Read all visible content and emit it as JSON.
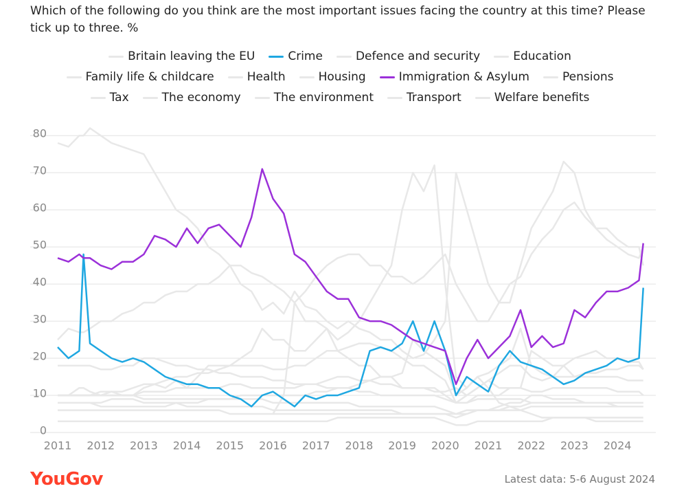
{
  "chart_data": {
    "type": "line",
    "title": "Which of the following do you think are the most important issues facing the country at this time? Please tick up to three. %",
    "logo": "YouGov",
    "note": "Latest data: 5-6 August 2024",
    "xlim": [
      2011,
      2024.7
    ],
    "xticks": [
      2011,
      2012,
      2013,
      2014,
      2015,
      2016,
      2017,
      2018,
      2019,
      2020,
      2021,
      2022,
      2023,
      2024
    ],
    "ylim": [
      0,
      83
    ],
    "yticks": [
      0,
      10,
      20,
      30,
      40,
      50,
      60,
      70,
      80
    ],
    "grid": true,
    "x": [
      2011,
      2011.25,
      2011.5,
      2011.6,
      2011.75,
      2012,
      2012.25,
      2012.5,
      2012.75,
      2013,
      2013.25,
      2013.5,
      2013.75,
      2014,
      2014.25,
      2014.5,
      2014.75,
      2015,
      2015.25,
      2015.5,
      2015.75,
      2016,
      2016.25,
      2016.5,
      2016.75,
      2017,
      2017.25,
      2017.5,
      2017.75,
      2018,
      2018.25,
      2018.5,
      2018.75,
      2019,
      2019.25,
      2019.5,
      2019.75,
      2020,
      2020.25,
      2020.5,
      2020.75,
      2021,
      2021.25,
      2021.5,
      2021.75,
      2022,
      2022.25,
      2022.5,
      2022.75,
      2023,
      2023.25,
      2023.5,
      2023.75,
      2024,
      2024.25,
      2024.5,
      2024.6
    ],
    "series": [
      {
        "name": "Britain leaving the EU",
        "color": "#e8e8e8",
        "values": [
          null,
          null,
          null,
          null,
          null,
          null,
          null,
          null,
          null,
          null,
          null,
          null,
          null,
          null,
          null,
          null,
          null,
          null,
          null,
          null,
          null,
          5,
          10,
          35,
          30,
          30,
          28,
          25,
          27,
          30,
          35,
          40,
          45,
          60,
          70,
          65,
          72,
          40,
          15,
          12,
          15,
          12,
          8,
          7,
          6,
          5,
          4,
          4,
          4,
          4,
          4,
          3,
          3,
          3,
          3,
          3,
          3
        ]
      },
      {
        "name": "Crime",
        "color": "#1ea7e1",
        "values": [
          23,
          20,
          22,
          48,
          24,
          22,
          20,
          19,
          20,
          19,
          17,
          15,
          14,
          13,
          13,
          12,
          12,
          10,
          9,
          7,
          10,
          11,
          9,
          7,
          10,
          9,
          10,
          10,
          11,
          12,
          22,
          23,
          22,
          24,
          30,
          22,
          30,
          22,
          10,
          15,
          13,
          11,
          18,
          22,
          19,
          18,
          17,
          15,
          13,
          14,
          16,
          17,
          18,
          20,
          19,
          20,
          39
        ]
      },
      {
        "name": "Defence and security",
        "color": "#e8e8e8",
        "values": [
          10,
          10,
          12,
          12,
          11,
          10,
          10,
          10,
          10,
          12,
          13,
          12,
          14,
          12,
          15,
          18,
          18,
          18,
          20,
          22,
          28,
          25,
          25,
          22,
          22,
          25,
          28,
          22,
          20,
          18,
          18,
          15,
          15,
          12,
          12,
          12,
          12,
          10,
          8,
          8,
          10,
          10,
          10,
          12,
          12,
          22,
          20,
          18,
          18,
          15,
          15,
          15,
          15,
          15,
          14,
          14,
          14
        ]
      },
      {
        "name": "Education",
        "color": "#e8e8e8",
        "values": [
          10,
          10,
          10,
          10,
          10,
          11,
          11,
          10,
          10,
          11,
          11,
          11,
          12,
          12,
          12,
          12,
          12,
          13,
          13,
          12,
          12,
          12,
          12,
          12,
          13,
          13,
          14,
          15,
          15,
          14,
          14,
          13,
          13,
          12,
          12,
          12,
          11,
          11,
          12,
          10,
          12,
          14,
          12,
          12,
          12,
          11,
          11,
          12,
          12,
          12,
          12,
          12,
          12,
          11,
          11,
          11,
          10
        ]
      },
      {
        "name": "Family life & childcare",
        "color": "#e8e8e8",
        "values": [
          6,
          6,
          6,
          6,
          6,
          6,
          6,
          6,
          6,
          6,
          6,
          6,
          6,
          6,
          6,
          6,
          6,
          5,
          5,
          5,
          5,
          5,
          5,
          5,
          5,
          5,
          5,
          5,
          5,
          5,
          5,
          5,
          5,
          5,
          5,
          5,
          5,
          5,
          5,
          6,
          6,
          6,
          6,
          6,
          6,
          7,
          7,
          7,
          7,
          7,
          7,
          7,
          7,
          7,
          7,
          7,
          7
        ]
      },
      {
        "name": "Health",
        "color": "#e8e8e8",
        "values": [
          25,
          28,
          27,
          27,
          28,
          30,
          30,
          32,
          33,
          35,
          35,
          37,
          38,
          38,
          40,
          40,
          42,
          45,
          45,
          43,
          42,
          40,
          38,
          35,
          38,
          42,
          45,
          47,
          48,
          48,
          45,
          45,
          42,
          42,
          40,
          42,
          45,
          48,
          40,
          35,
          30,
          30,
          35,
          40,
          42,
          48,
          52,
          55,
          60,
          62,
          58,
          55,
          55,
          52,
          50,
          50,
          45
        ]
      },
      {
        "name": "Housing",
        "color": "#e8e8e8",
        "values": [
          10,
          10,
          10,
          10,
          10,
          10,
          11,
          11,
          12,
          13,
          13,
          14,
          15,
          15,
          16,
          16,
          17,
          18,
          18,
          18,
          18,
          17,
          17,
          18,
          18,
          20,
          22,
          22,
          23,
          24,
          24,
          23,
          22,
          20,
          18,
          18,
          16,
          14,
          8,
          10,
          12,
          14,
          16,
          18,
          18,
          15,
          14,
          15,
          18,
          20,
          21,
          22,
          20,
          20,
          19,
          19,
          17
        ]
      },
      {
        "name": "Immigration & Asylum",
        "color": "#9b30d9",
        "values": [
          47,
          46,
          48,
          47,
          47,
          45,
          44,
          46,
          46,
          48,
          53,
          52,
          50,
          55,
          51,
          55,
          56,
          53,
          50,
          58,
          71,
          63,
          59,
          48,
          46,
          42,
          38,
          36,
          36,
          31,
          30,
          30,
          29,
          27,
          25,
          24,
          23,
          22,
          13,
          20,
          25,
          20,
          23,
          26,
          33,
          23,
          26,
          23,
          24,
          33,
          31,
          35,
          38,
          38,
          39,
          41,
          51
        ]
      },
      {
        "name": "Pensions",
        "color": "#e8e8e8",
        "values": [
          10,
          10,
          10,
          10,
          10,
          10,
          10,
          10,
          10,
          9,
          9,
          9,
          9,
          9,
          9,
          9,
          9,
          9,
          9,
          9,
          9,
          8,
          8,
          8,
          8,
          8,
          8,
          8,
          8,
          7,
          7,
          7,
          7,
          7,
          7,
          7,
          7,
          6,
          5,
          5,
          6,
          6,
          6,
          7,
          7,
          8,
          8,
          8,
          8,
          8,
          8,
          8,
          8,
          7,
          7,
          7,
          7
        ]
      },
      {
        "name": "Tax",
        "color": "#e8e8e8",
        "values": [
          8,
          8,
          8,
          8,
          8,
          8,
          9,
          9,
          9,
          8,
          8,
          8,
          8,
          7,
          7,
          7,
          7,
          7,
          7,
          7,
          7,
          6,
          6,
          6,
          6,
          6,
          6,
          6,
          6,
          6,
          6,
          6,
          6,
          5,
          5,
          5,
          5,
          5,
          4,
          5,
          6,
          6,
          7,
          8,
          8,
          10,
          10,
          9,
          9,
          9,
          8,
          8,
          8,
          8,
          8,
          8,
          8
        ]
      },
      {
        "name": "The economy",
        "color": "#e8e8e8",
        "values": [
          78,
          77,
          80,
          80,
          82,
          80,
          78,
          77,
          76,
          75,
          70,
          65,
          60,
          58,
          55,
          50,
          48,
          45,
          40,
          38,
          33,
          35,
          32,
          38,
          34,
          33,
          30,
          28,
          30,
          28,
          27,
          25,
          25,
          22,
          20,
          21,
          25,
          30,
          70,
          60,
          50,
          40,
          35,
          35,
          45,
          55,
          60,
          65,
          73,
          70,
          60,
          55,
          52,
          50,
          48,
          47,
          50
        ]
      },
      {
        "name": "The environment",
        "color": "#e8e8e8",
        "values": [
          8,
          8,
          8,
          8,
          8,
          7,
          7,
          7,
          7,
          7,
          7,
          7,
          8,
          8,
          8,
          9,
          9,
          9,
          10,
          10,
          10,
          10,
          10,
          10,
          10,
          11,
          11,
          12,
          12,
          13,
          14,
          15,
          15,
          16,
          25,
          22,
          20,
          18,
          10,
          12,
          15,
          16,
          18,
          20,
          28,
          18,
          16,
          15,
          15,
          15,
          16,
          16,
          17,
          17,
          18,
          18,
          17
        ]
      },
      {
        "name": "Transport",
        "color": "#e8e8e8",
        "values": [
          3,
          3,
          3,
          3,
          3,
          3,
          3,
          3,
          3,
          3,
          3,
          3,
          3,
          3,
          3,
          3,
          3,
          3,
          3,
          3,
          3,
          3,
          3,
          3,
          3,
          3,
          3,
          4,
          4,
          4,
          4,
          4,
          4,
          4,
          4,
          4,
          4,
          3,
          2,
          2,
          3,
          3,
          3,
          3,
          3,
          3,
          3,
          4,
          4,
          4,
          4,
          4,
          4,
          4,
          4,
          4,
          4
        ]
      },
      {
        "name": "Welfare benefits",
        "color": "#e8e8e8",
        "values": [
          18,
          18,
          18,
          18,
          18,
          17,
          17,
          18,
          18,
          20,
          20,
          19,
          18,
          18,
          17,
          17,
          16,
          16,
          15,
          15,
          15,
          14,
          14,
          13,
          13,
          13,
          12,
          12,
          12,
          11,
          11,
          10,
          10,
          10,
          10,
          10,
          10,
          9,
          8,
          8,
          9,
          9,
          9,
          9,
          9,
          8,
          8,
          8,
          8,
          8,
          8,
          8,
          8,
          8,
          8,
          8,
          8
        ]
      }
    ]
  }
}
